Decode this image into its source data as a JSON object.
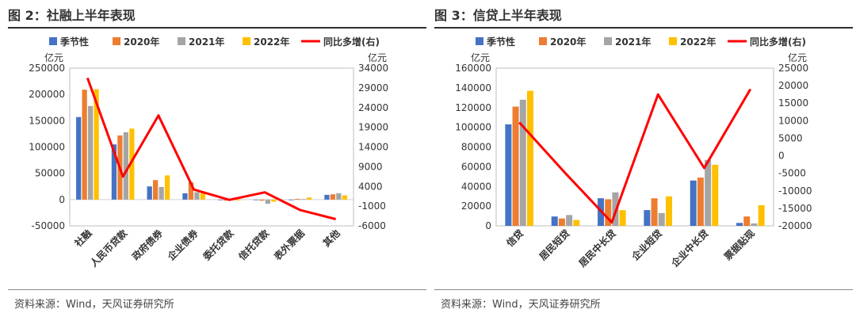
{
  "panels": [
    {
      "title": "图 2：社融上半年表现",
      "source": "资料来源：Wind，天风证券研究所",
      "chart_data": {
        "type": "bar",
        "title": "图 2：社融上半年表现",
        "left_unit": "亿元",
        "right_unit": "亿元",
        "categories": [
          "社融",
          "人民币贷款",
          "政府债券",
          "企业债券",
          "委托贷款",
          "信托贷款",
          "表外票据",
          "其他"
        ],
        "ylim_left": [
          -50000,
          250000
        ],
        "yticks_left": [
          "-50000",
          "0",
          "50000",
          "100000",
          "150000",
          "200000",
          "250000"
        ],
        "ylim_right": [
          -6000,
          34000
        ],
        "yticks_right": [
          "-6000",
          "-1000",
          "4000",
          "9000",
          "14000",
          "19000",
          "24000",
          "29000",
          "34000"
        ],
        "series": [
          {
            "name": "季节性",
            "values": [
              157000,
              105000,
              25000,
              12000,
              -1000,
              -1000,
              -500,
              9000
            ]
          },
          {
            "name": "2020年",
            "values": [
              209000,
              122000,
              37000,
              33000,
              -2000,
              -2000,
              1500,
              10000
            ]
          },
          {
            "name": "2021年",
            "values": [
              178000,
              128000,
              24000,
              14000,
              -1000,
              -8000,
              1000,
              12000
            ]
          },
          {
            "name": "2022年",
            "values": [
              210000,
              135000,
              46000,
              13000,
              -1500,
              -4000,
              4000,
              8000
            ]
          }
        ],
        "line": {
          "name": "同比多增(右)",
          "values": [
            31500,
            6500,
            22000,
            3200,
            600,
            2500,
            -2000,
            -4300
          ]
        },
        "legend_position": "top",
        "grid": false,
        "colors": [
          "#4472C4",
          "#ED7D31",
          "#A5A5A5",
          "#FFC000",
          "#FF0000"
        ]
      }
    },
    {
      "title": "图 3：信贷上半年表现",
      "source": "资料来源：Wind，天风证券研究所",
      "chart_data": {
        "type": "bar",
        "title": "图 3：信贷上半年表现",
        "left_unit": "亿元",
        "right_unit": "亿元",
        "categories": [
          "信贷",
          "居民短贷",
          "居民中长贷",
          "企业短贷",
          "企业中长贷",
          "票据贴现"
        ],
        "ylim_left": [
          0,
          160000
        ],
        "yticks_left": [
          "0",
          "20000",
          "40000",
          "60000",
          "80000",
          "100000",
          "120000",
          "140000",
          "160000"
        ],
        "ylim_right": [
          -20000,
          25000
        ],
        "yticks_right": [
          "-20000",
          "-15000",
          "-10000",
          "-5000",
          "0",
          "5000",
          "10000",
          "15000",
          "20000",
          "25000"
        ],
        "series": [
          {
            "name": "季节性",
            "values": [
              103000,
              9500,
              28000,
              16000,
              46000,
              3000
            ]
          },
          {
            "name": "2020年",
            "values": [
              121000,
              7500,
              27000,
              28000,
              49000,
              9500
            ]
          },
          {
            "name": "2021年",
            "values": [
              128000,
              11000,
              34000,
              13000,
              67000,
              2500
            ]
          },
          {
            "name": "2022年",
            "values": [
              137000,
              6000,
              16000,
              30000,
              62000,
              21000
            ]
          }
        ],
        "line": {
          "name": "同比多增(右)",
          "values": [
            9500,
            -5000,
            -19000,
            17500,
            -3500,
            19000
          ]
        },
        "legend_position": "top",
        "grid": false,
        "colors": [
          "#4472C4",
          "#ED7D31",
          "#A5A5A5",
          "#FFC000",
          "#FF0000"
        ]
      }
    }
  ]
}
